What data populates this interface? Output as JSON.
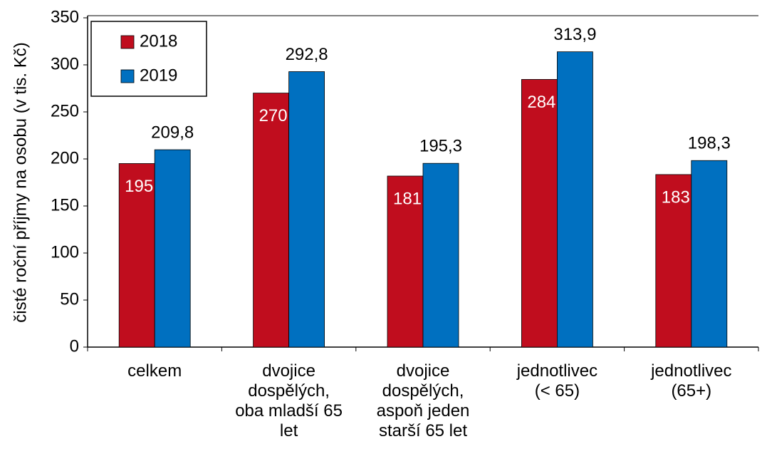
{
  "chart_data": {
    "type": "bar",
    "y_label": "čisté roční příjmy na osobu (v tis. Kč)",
    "categories": [
      "celkem",
      "dvojice\ndospělých,\noba mladší 65\nlet",
      "dvojice\ndospělých,\naspoň jeden\nstarší 65 let",
      "jednotlivec\n(< 65)",
      "jednotlivec\n(65+)"
    ],
    "series": [
      {
        "name": "2018",
        "color": "#c00d1e",
        "values": [
          195.1,
          270.0,
          181.8,
          284.5,
          183.4
        ],
        "value_labels": [
          "195,1",
          "270,0",
          "181,8",
          "284,5",
          "183,4"
        ]
      },
      {
        "name": "2019",
        "color": "#0070c0",
        "values": [
          209.8,
          292.8,
          195.3,
          313.9,
          198.3
        ],
        "value_labels": [
          "209,8",
          "292,8",
          "195,3",
          "313,9",
          "198,3"
        ]
      }
    ],
    "ylim": [
      0,
      350
    ],
    "yticks": [
      0,
      50,
      100,
      150,
      200,
      250,
      300,
      350
    ],
    "legend": "top-left"
  }
}
